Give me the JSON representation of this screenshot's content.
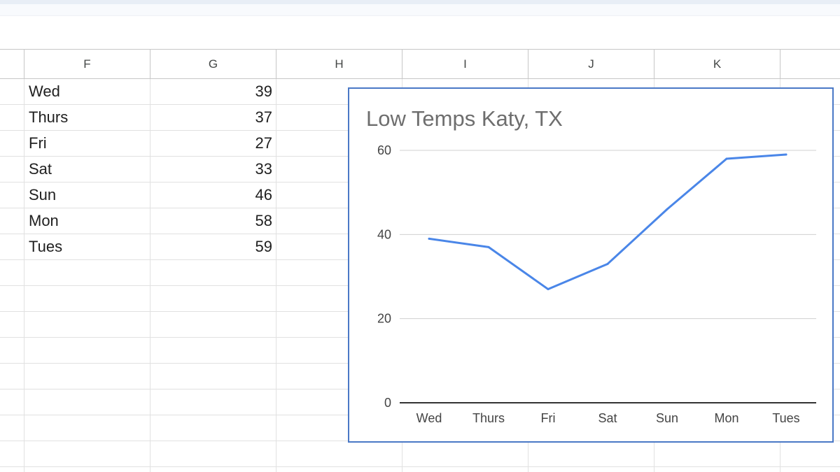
{
  "sheet": {
    "columns": [
      "F",
      "G",
      "H",
      "I",
      "J",
      "K"
    ],
    "rows": [
      {
        "day": "Wed",
        "temp": "39"
      },
      {
        "day": "Thurs",
        "temp": "37"
      },
      {
        "day": "Fri",
        "temp": "27"
      },
      {
        "day": "Sat",
        "temp": "33"
      },
      {
        "day": "Sun",
        "temp": "46"
      },
      {
        "day": "Mon",
        "temp": "58"
      },
      {
        "day": "Tues",
        "temp": "59"
      }
    ]
  },
  "chart_data": {
    "type": "line",
    "title": "Low Temps Katy, TX",
    "categories": [
      "Wed",
      "Thurs",
      "Fri",
      "Sat",
      "Sun",
      "Mon",
      "Tues"
    ],
    "series": [
      {
        "values": [
          39,
          37,
          27,
          33,
          46,
          58,
          59
        ],
        "color": "#4a86e8"
      }
    ],
    "yticks": [
      0,
      20,
      40,
      60
    ],
    "ylim": [
      0,
      60
    ],
    "xlabel": "",
    "ylabel": "",
    "grid": true,
    "legend": "none"
  }
}
